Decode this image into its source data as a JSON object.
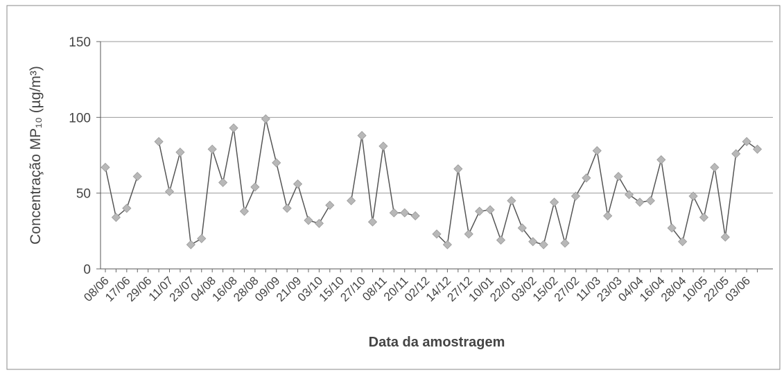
{
  "chart_data": {
    "type": "line",
    "y_label": "Concentração MP₁₀ (µg/m³)",
    "x_label": "Data da amostragem",
    "categories": [
      "08/06",
      null,
      "17/06",
      null,
      "29/06",
      null,
      "11/07",
      null,
      "23/07",
      null,
      "04/08",
      null,
      "16/08",
      null,
      "28/08",
      null,
      "09/09",
      null,
      "21/09",
      null,
      "03/10",
      null,
      "15/10",
      null,
      "27/10",
      null,
      "08/11",
      null,
      "20/11",
      null,
      "02/12",
      null,
      "14/12",
      null,
      "27/12",
      null,
      "10/01",
      null,
      "22/01",
      null,
      "03/02",
      null,
      "15/02",
      null,
      "27/02",
      null,
      "11/03",
      null,
      "23/03",
      null,
      "04/04",
      null,
      "16/04",
      null,
      "28/04",
      null,
      "10/05",
      null,
      "22/05",
      null,
      "03/06",
      null
    ],
    "values": [
      67,
      34,
      40,
      61,
      null,
      84,
      51,
      77,
      16,
      20,
      79,
      57,
      93,
      38,
      54,
      99,
      70,
      40,
      56,
      32,
      30,
      42,
      null,
      45,
      88,
      31,
      81,
      37,
      37,
      35,
      null,
      23,
      16,
      66,
      23,
      38,
      39,
      19,
      45,
      27,
      18,
      16,
      44,
      17,
      48,
      60,
      78,
      35,
      61,
      49,
      44,
      45,
      72,
      27,
      18,
      48,
      34,
      67,
      21,
      76,
      84,
      79
    ],
    "color": "#555555",
    "marker_color": "#b8b8b8",
    "ylim": [
      0,
      150
    ],
    "yticks": [
      0,
      50,
      100,
      150
    ],
    "grid": true
  }
}
